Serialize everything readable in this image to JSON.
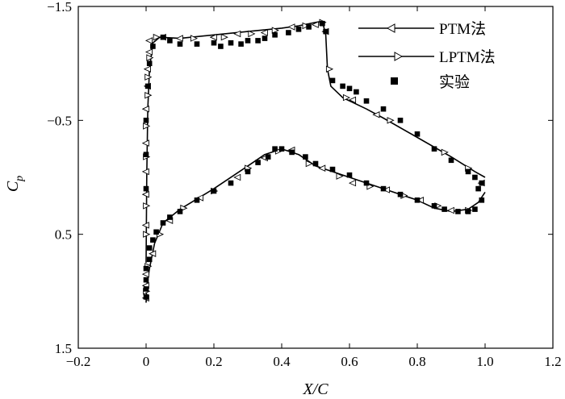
{
  "chart_data": {
    "type": "line",
    "title": "",
    "xlabel": "X/C",
    "ylabel": {
      "main": "C",
      "sub": "p"
    },
    "xlim": [
      -0.2,
      1.2
    ],
    "ylim": [
      1.5,
      -1.5
    ],
    "y_inverted": true,
    "grid": false,
    "legend_position": "top-right",
    "x_ticks": [
      {
        "value": -0.2,
        "label": "−0.2"
      },
      {
        "value": 0,
        "label": "0"
      },
      {
        "value": 0.2,
        "label": "0.2"
      },
      {
        "value": 0.4,
        "label": "0.4"
      },
      {
        "value": 0.6,
        "label": "0.6"
      },
      {
        "value": 0.8,
        "label": "0.8"
      },
      {
        "value": 1.0,
        "label": "1.0"
      },
      {
        "value": 1.2,
        "label": "1.2"
      }
    ],
    "y_ticks": [
      {
        "value": -1.5,
        "label": "−1.5"
      },
      {
        "value": -0.5,
        "label": "−0.5"
      },
      {
        "value": 0.5,
        "label": "0.5"
      },
      {
        "value": 1.5,
        "label": "1.5"
      }
    ],
    "series": [
      {
        "name": "PTM法",
        "marker": "triangle-left",
        "upper": [
          [
            0.0,
            0.75
          ],
          [
            0.002,
            0.0
          ],
          [
            0.005,
            -0.6
          ],
          [
            0.01,
            -0.95
          ],
          [
            0.02,
            -1.18
          ],
          [
            0.04,
            -1.23
          ],
          [
            0.1,
            -1.22
          ],
          [
            0.2,
            -1.25
          ],
          [
            0.3,
            -1.28
          ],
          [
            0.4,
            -1.31
          ],
          [
            0.45,
            -1.33
          ],
          [
            0.5,
            -1.36
          ],
          [
            0.52,
            -1.37
          ],
          [
            0.53,
            -1.25
          ],
          [
            0.535,
            -0.95
          ],
          [
            0.545,
            -0.8
          ],
          [
            0.58,
            -0.7
          ],
          [
            0.65,
            -0.6
          ],
          [
            0.7,
            -0.52
          ],
          [
            0.8,
            -0.35
          ],
          [
            0.9,
            -0.18
          ],
          [
            0.97,
            -0.05
          ],
          [
            1.0,
            0.0
          ]
        ],
        "lower": [
          [
            0.0,
            1.1
          ],
          [
            0.002,
            0.95
          ],
          [
            0.01,
            0.8
          ],
          [
            0.025,
            0.58
          ],
          [
            0.05,
            0.4
          ],
          [
            0.1,
            0.28
          ],
          [
            0.2,
            0.1
          ],
          [
            0.3,
            -0.1
          ],
          [
            0.35,
            -0.2
          ],
          [
            0.4,
            -0.25
          ],
          [
            0.45,
            -0.2
          ],
          [
            0.5,
            -0.1
          ],
          [
            0.6,
            0.0
          ],
          [
            0.7,
            0.1
          ],
          [
            0.8,
            0.2
          ],
          [
            0.85,
            0.27
          ],
          [
            0.9,
            0.3
          ],
          [
            0.95,
            0.28
          ],
          [
            0.98,
            0.22
          ],
          [
            1.0,
            0.13
          ]
        ],
        "markers": [
          [
            0.0,
            1.06
          ],
          [
            0.0,
            0.85
          ],
          [
            0.0,
            0.42
          ],
          [
            0.0,
            0.15
          ],
          [
            0.0,
            -0.05
          ],
          [
            0.0,
            -0.3
          ],
          [
            0.0,
            -0.6
          ],
          [
            0.005,
            -0.8
          ],
          [
            0.005,
            -0.95
          ],
          [
            0.01,
            -1.1
          ],
          [
            0.01,
            -1.2
          ],
          [
            0.05,
            -1.23
          ],
          [
            0.1,
            -1.22
          ],
          [
            0.2,
            -1.23
          ],
          [
            0.27,
            -1.26
          ],
          [
            0.35,
            -1.27
          ],
          [
            0.43,
            -1.32
          ],
          [
            0.5,
            -1.34
          ],
          [
            0.53,
            -1.28
          ],
          [
            0.61,
            -0.68
          ],
          [
            0.68,
            -0.55
          ],
          [
            0.0,
            0.95
          ],
          [
            0.02,
            0.67
          ],
          [
            0.07,
            0.38
          ],
          [
            0.16,
            0.18
          ],
          [
            0.27,
            0.0
          ],
          [
            0.35,
            -0.17
          ],
          [
            0.43,
            -0.24
          ],
          [
            0.52,
            -0.08
          ],
          [
            0.61,
            0.05
          ],
          [
            0.71,
            0.11
          ],
          [
            0.81,
            0.2
          ],
          [
            0.9,
            0.29
          ],
          [
            0.99,
            0.05
          ]
        ]
      },
      {
        "name": "LPTM法",
        "marker": "triangle-right",
        "markers": [
          [
            0.0,
            0.5
          ],
          [
            0.0,
            0.25
          ],
          [
            0.0,
            -0.18
          ],
          [
            0.0,
            -0.45
          ],
          [
            0.005,
            -0.72
          ],
          [
            0.005,
            -0.88
          ],
          [
            0.01,
            -1.05
          ],
          [
            0.03,
            -1.23
          ],
          [
            0.14,
            -1.22
          ],
          [
            0.23,
            -1.23
          ],
          [
            0.31,
            -1.26
          ],
          [
            0.38,
            -1.29
          ],
          [
            0.47,
            -1.33
          ],
          [
            0.52,
            -1.36
          ],
          [
            0.54,
            -0.95
          ],
          [
            0.59,
            -0.7
          ],
          [
            0.72,
            -0.5
          ],
          [
            0.88,
            -0.22
          ],
          [
            0.95,
            -0.08
          ],
          [
            0.0,
            1.0
          ],
          [
            0.005,
            0.78
          ],
          [
            0.04,
            0.5
          ],
          [
            0.11,
            0.27
          ],
          [
            0.2,
            0.12
          ],
          [
            0.3,
            -0.08
          ],
          [
            0.39,
            -0.23
          ],
          [
            0.48,
            -0.12
          ],
          [
            0.57,
            -0.01
          ],
          [
            0.66,
            0.08
          ],
          [
            0.76,
            0.16
          ],
          [
            0.86,
            0.25
          ],
          [
            0.95,
            0.29
          ]
        ]
      },
      {
        "name": "实验",
        "marker": "square",
        "points": [
          [
            0.0,
            1.05
          ],
          [
            0.0,
            0.98
          ],
          [
            0.0,
            0.9
          ],
          [
            0.0,
            0.8
          ],
          [
            0.01,
            0.72
          ],
          [
            0.01,
            0.62
          ],
          [
            0.02,
            0.55
          ],
          [
            0.03,
            0.48
          ],
          [
            0.05,
            0.4
          ],
          [
            0.07,
            0.35
          ],
          [
            0.1,
            0.3
          ],
          [
            0.15,
            0.2
          ],
          [
            0.2,
            0.12
          ],
          [
            0.25,
            0.05
          ],
          [
            0.3,
            -0.05
          ],
          [
            0.33,
            -0.13
          ],
          [
            0.36,
            -0.18
          ],
          [
            0.38,
            -0.25
          ],
          [
            0.4,
            -0.25
          ],
          [
            0.43,
            -0.22
          ],
          [
            0.47,
            -0.18
          ],
          [
            0.5,
            -0.12
          ],
          [
            0.55,
            -0.07
          ],
          [
            0.6,
            -0.02
          ],
          [
            0.65,
            0.05
          ],
          [
            0.7,
            0.1
          ],
          [
            0.75,
            0.15
          ],
          [
            0.8,
            0.2
          ],
          [
            0.85,
            0.25
          ],
          [
            0.88,
            0.28
          ],
          [
            0.92,
            0.3
          ],
          [
            0.95,
            0.3
          ],
          [
            0.97,
            0.28
          ],
          [
            0.99,
            0.2
          ],
          [
            0.98,
            0.1
          ],
          [
            0.0,
            0.1
          ],
          [
            0.0,
            -0.2
          ],
          [
            0.0,
            -0.5
          ],
          [
            0.005,
            -0.8
          ],
          [
            0.01,
            -1.0
          ],
          [
            0.02,
            -1.15
          ],
          [
            0.05,
            -1.23
          ],
          [
            0.07,
            -1.2
          ],
          [
            0.1,
            -1.17
          ],
          [
            0.15,
            -1.17
          ],
          [
            0.2,
            -1.18
          ],
          [
            0.22,
            -1.15
          ],
          [
            0.25,
            -1.18
          ],
          [
            0.28,
            -1.17
          ],
          [
            0.3,
            -1.2
          ],
          [
            0.33,
            -1.2
          ],
          [
            0.35,
            -1.22
          ],
          [
            0.38,
            -1.25
          ],
          [
            0.42,
            -1.27
          ],
          [
            0.45,
            -1.3
          ],
          [
            0.48,
            -1.32
          ],
          [
            0.52,
            -1.35
          ],
          [
            0.53,
            -1.28
          ],
          [
            0.55,
            -0.85
          ],
          [
            0.58,
            -0.8
          ],
          [
            0.6,
            -0.78
          ],
          [
            0.62,
            -0.75
          ],
          [
            0.65,
            -0.67
          ],
          [
            0.7,
            -0.6
          ],
          [
            0.75,
            -0.5
          ],
          [
            0.8,
            -0.38
          ],
          [
            0.85,
            -0.25
          ],
          [
            0.9,
            -0.15
          ],
          [
            0.95,
            -0.05
          ],
          [
            0.97,
            0.0
          ],
          [
            0.99,
            0.05
          ]
        ]
      }
    ]
  }
}
